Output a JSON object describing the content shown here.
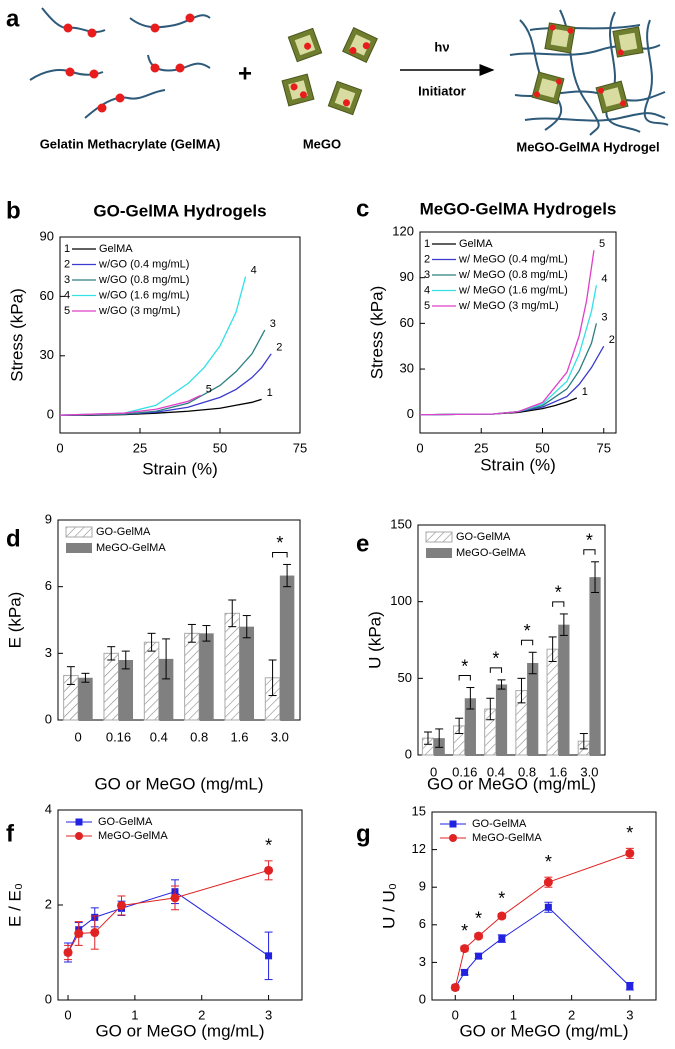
{
  "schematic": {
    "panel": "a",
    "left_label": "Gelatin Methacrylate (GelMA)",
    "plus": "+",
    "middle_label": "MeGO",
    "arrow_top": "hν",
    "arrow_bottom": "Initiator",
    "right_label": "MeGO-GelMA Hydrogel"
  },
  "chart_data": [
    {
      "type": "line",
      "panel": "b",
      "title": "GO-GelMA Hydrogels",
      "x_label": "Strain (%)",
      "y_label": "Stress (kPa)",
      "xlim": [
        0,
        75
      ],
      "xticks": [
        0,
        25,
        50,
        75
      ],
      "ylim": [
        -9,
        90
      ],
      "yticks": [
        0,
        30,
        60,
        90
      ],
      "grid": false,
      "legend": "upper left",
      "series": [
        {
          "label": "1",
          "name": "GelMA",
          "color": "#000000",
          "x": [
            0,
            10,
            20,
            30,
            40,
            50,
            55,
            60,
            63
          ],
          "values": [
            0,
            0,
            0.3,
            1,
            2,
            3.5,
            5,
            6.5,
            8
          ]
        },
        {
          "label": "2",
          "name": "w/GO (0.4 mg/mL)",
          "color": "#3a3ad0",
          "x": [
            0,
            20,
            30,
            40,
            50,
            55,
            60,
            63,
            66
          ],
          "values": [
            0,
            0.5,
            1.5,
            4,
            9,
            13,
            19,
            24,
            31
          ]
        },
        {
          "label": "3",
          "name": "w/GO (0.8 mg/mL)",
          "color": "#2a7f7f",
          "x": [
            0,
            20,
            30,
            40,
            50,
            55,
            60,
            64
          ],
          "values": [
            0,
            0.5,
            2,
            6,
            15,
            22,
            31,
            43
          ]
        },
        {
          "label": "4",
          "name": "w/GO (1.6 mg/mL)",
          "color": "#33e0e6",
          "x": [
            0,
            20,
            30,
            40,
            45,
            50,
            55,
            58
          ],
          "values": [
            0,
            1,
            5,
            16,
            24,
            35,
            52,
            70
          ]
        },
        {
          "label": "5",
          "name": "w/GO (3 mg/mL)",
          "color": "#e040c8",
          "x": [
            0,
            20,
            30,
            40,
            44
          ],
          "values": [
            0,
            1,
            3,
            7,
            10
          ]
        }
      ]
    },
    {
      "type": "line",
      "panel": "c",
      "title": "MeGO-GelMA Hydrogels",
      "x_label": "Strain (%)",
      "y_label": "Stress (kPa)",
      "xlim": [
        0,
        80
      ],
      "xticks": [
        0,
        25,
        50,
        75
      ],
      "ylim": [
        -12,
        120
      ],
      "yticks": [
        0,
        30,
        60,
        90,
        120
      ],
      "grid": false,
      "legend": "upper left",
      "series": [
        {
          "label": "1",
          "name": "GelMA",
          "color": "#000000",
          "x": [
            0,
            30,
            40,
            50,
            55,
            60,
            64
          ],
          "values": [
            0,
            0.5,
            1.5,
            4,
            6,
            8.5,
            11
          ]
        },
        {
          "label": "2",
          "name": "w/ MeGO (0.4 mg/mL)",
          "color": "#3a3ad0",
          "x": [
            0,
            30,
            40,
            50,
            60,
            65,
            70,
            75
          ],
          "values": [
            0,
            0.5,
            2,
            5,
            12,
            20,
            31,
            45
          ]
        },
        {
          "label": "3",
          "name": "w/ MeGO (0.8 mg/mL)",
          "color": "#2a7f7f",
          "x": [
            0,
            30,
            40,
            50,
            60,
            65,
            70,
            72
          ],
          "values": [
            0,
            0.5,
            2,
            6,
            17,
            29,
            47,
            60
          ]
        },
        {
          "label": "4",
          "name": "w/ MeGO (1.6 mg/mL)",
          "color": "#33e0e6",
          "x": [
            0,
            30,
            40,
            50,
            60,
            65,
            70,
            72
          ],
          "values": [
            0,
            0.5,
            2,
            7,
            22,
            40,
            68,
            85
          ]
        },
        {
          "label": "5",
          "name": "w/ MeGO (3 mg/mL)",
          "color": "#e040c8",
          "x": [
            0,
            30,
            40,
            50,
            60,
            65,
            68,
            71
          ],
          "values": [
            0,
            0.5,
            2,
            8,
            28,
            52,
            75,
            108
          ]
        }
      ]
    },
    {
      "type": "bar",
      "panel": "d",
      "x_label": "GO or MeGO (mg/mL)",
      "y_label": "E (kPa)",
      "categories": [
        "0",
        "0.16",
        "0.4",
        "0.8",
        "1.6",
        "3.0"
      ],
      "ylim": [
        0,
        9
      ],
      "yticks": [
        0,
        3,
        6,
        9
      ],
      "grid": false,
      "legend": "upper left",
      "series": [
        {
          "name": "GO-GelMA",
          "color": "#ffffff",
          "pattern": "hatch",
          "values": [
            2.0,
            3.0,
            3.5,
            3.9,
            4.8,
            1.9
          ],
          "errors": [
            0.4,
            0.3,
            0.4,
            0.4,
            0.6,
            0.8
          ]
        },
        {
          "name": "MeGO-GelMA",
          "color": "#808080",
          "values": [
            1.9,
            2.7,
            2.75,
            3.9,
            4.2,
            6.5
          ],
          "errors": [
            0.2,
            0.4,
            0.9,
            0.35,
            0.5,
            0.5
          ]
        }
      ],
      "annotations": [
        {
          "text": "*",
          "category": "3.0"
        }
      ]
    },
    {
      "type": "bar",
      "panel": "e",
      "x_label": "GO or MeGO (mg/mL)",
      "y_label": "U (kPa)",
      "categories": [
        "0",
        "0.16",
        "0.4",
        "0.8",
        "1.6",
        "3.0"
      ],
      "ylim": [
        0,
        150
      ],
      "yticks": [
        0,
        50,
        100,
        150
      ],
      "grid": false,
      "legend": "upper left",
      "series": [
        {
          "name": "GO-GelMA",
          "color": "#ffffff",
          "pattern": "hatch",
          "values": [
            11,
            19,
            30,
            42,
            69,
            9
          ],
          "errors": [
            4,
            5,
            7,
            8,
            8,
            5
          ]
        },
        {
          "name": "MeGO-GelMA",
          "color": "#808080",
          "values": [
            11,
            37,
            46,
            60,
            85,
            116
          ],
          "errors": [
            6,
            7,
            3,
            7,
            7,
            10
          ]
        }
      ],
      "annotations": [
        {
          "text": "*",
          "category": "0.16"
        },
        {
          "text": "*",
          "category": "0.4"
        },
        {
          "text": "*",
          "category": "0.8"
        },
        {
          "text": "*",
          "category": "1.6"
        },
        {
          "text": "*",
          "category": "3.0"
        }
      ]
    },
    {
      "type": "errorbar",
      "panel": "f",
      "x_label": "GO or MeGO (mg/mL)",
      "y_label": "E / E₀",
      "xlim": [
        -0.15,
        3.5
      ],
      "xticks": [
        0,
        1,
        2,
        3
      ],
      "ylim": [
        0,
        4
      ],
      "yticks": [
        0,
        2,
        4
      ],
      "grid": false,
      "legend": "upper left",
      "series": [
        {
          "name": "GO-GelMA",
          "color": "#2222e0",
          "marker": "square",
          "x": [
            0,
            0.16,
            0.4,
            0.8,
            1.6,
            3
          ],
          "values": [
            1,
            1.48,
            1.74,
            1.93,
            2.28,
            0.93
          ],
          "errors": [
            0.2,
            0.15,
            0.2,
            0.15,
            0.25,
            0.5
          ]
        },
        {
          "name": "MeGO-GelMA",
          "color": "#e02222",
          "marker": "circle",
          "x": [
            0,
            0.16,
            0.4,
            0.8,
            1.6,
            3
          ],
          "values": [
            1,
            1.4,
            1.42,
            1.99,
            2.15,
            2.73
          ],
          "errors": [
            0.15,
            0.25,
            0.35,
            0.2,
            0.25,
            0.2
          ]
        }
      ],
      "annotations": [
        {
          "text": "*",
          "x": 3
        }
      ]
    },
    {
      "type": "errorbar",
      "panel": "g",
      "x_label": "GO or MeGO (mg/mL)",
      "y_label": "U / U₀",
      "xlim": [
        -0.4,
        3.45
      ],
      "xticks": [
        0,
        1,
        2,
        3
      ],
      "ylim": [
        0,
        15
      ],
      "yticks": [
        0,
        3,
        6,
        9,
        12,
        15
      ],
      "grid": false,
      "legend": "upper left",
      "series": [
        {
          "name": "GO-GelMA",
          "color": "#2222e0",
          "marker": "square",
          "x": [
            0,
            0.16,
            0.4,
            0.8,
            1.6,
            3
          ],
          "values": [
            1,
            2.2,
            3.5,
            4.9,
            7.4,
            1.1
          ],
          "errors": [
            0.1,
            0.2,
            0.2,
            0.3,
            0.4,
            0.3
          ]
        },
        {
          "name": "MeGO-GelMA",
          "color": "#e02222",
          "marker": "circle",
          "x": [
            0,
            0.16,
            0.4,
            0.8,
            1.6,
            3
          ],
          "values": [
            1,
            4.1,
            5.1,
            6.7,
            9.4,
            11.7
          ],
          "errors": [
            0.1,
            0.2,
            0.2,
            0.2,
            0.4,
            0.4
          ]
        }
      ],
      "annotations": [
        {
          "text": "*",
          "x": 0.16
        },
        {
          "text": "*",
          "x": 0.4
        },
        {
          "text": "*",
          "x": 0.8
        },
        {
          "text": "*",
          "x": 1.6
        },
        {
          "text": "*",
          "x": 3
        }
      ]
    }
  ]
}
